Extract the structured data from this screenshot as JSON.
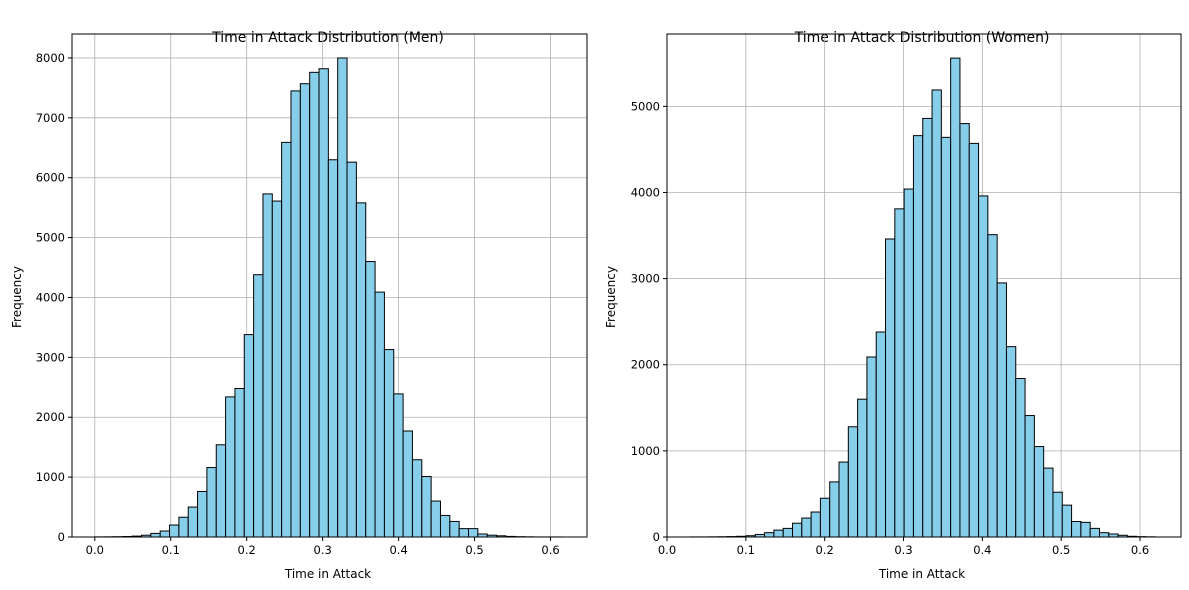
{
  "chart_data": [
    {
      "type": "bar",
      "title": "Time in Attack Distribution (Men)",
      "xlabel": "Time in Attack",
      "ylabel": "Frequency",
      "xlim": [
        -0.03,
        0.648
      ],
      "ylim": [
        0,
        8400
      ],
      "xticks": [
        0.0,
        0.1,
        0.2,
        0.3,
        0.4,
        0.5,
        0.6
      ],
      "xtick_labels": [
        "0.0",
        "0.1",
        "0.2",
        "0.3",
        "0.4",
        "0.5",
        "0.6"
      ],
      "yticks": [
        0,
        1000,
        2000,
        3000,
        4000,
        5000,
        6000,
        7000,
        8000
      ],
      "ytick_labels": [
        "0",
        "1000",
        "2000",
        "3000",
        "4000",
        "5000",
        "6000",
        "7000",
        "8000"
      ],
      "grid": true,
      "bin_start": 0.0,
      "bin_width": 0.0123,
      "bin_color": "#87ceeb",
      "edge_color": "#000000",
      "values": [
        2,
        3,
        5,
        8,
        15,
        30,
        60,
        100,
        200,
        330,
        500,
        760,
        1160,
        1540,
        2340,
        2480,
        3380,
        4380,
        5730,
        5610,
        6590,
        7450,
        7570,
        7760,
        7820,
        6300,
        8000,
        6260,
        5580,
        4600,
        4090,
        3130,
        2390,
        1770,
        1290,
        1010,
        600,
        360,
        260,
        140,
        140,
        50,
        30,
        20,
        10,
        5,
        3,
        1,
        1,
        1
      ]
    },
    {
      "type": "bar",
      "title": "Time in Attack Distribution (Women)",
      "xlabel": "Time in Attack",
      "ylabel": "Frequency",
      "xlim": [
        0.0,
        0.652
      ],
      "ylim": [
        0,
        5840
      ],
      "xticks": [
        0.0,
        0.1,
        0.2,
        0.3,
        0.4,
        0.5,
        0.6
      ],
      "xtick_labels": [
        "0.0",
        "0.1",
        "0.2",
        "0.3",
        "0.4",
        "0.5",
        "0.6"
      ],
      "yticks": [
        0,
        1000,
        2000,
        3000,
        4000,
        5000
      ],
      "ytick_labels": [
        "0",
        "1000",
        "2000",
        "3000",
        "4000",
        "5000"
      ],
      "grid": true,
      "bin_start": 0.0294,
      "bin_width": 0.0118,
      "bin_color": "#87ceeb",
      "edge_color": "#000000",
      "values": [
        1,
        1,
        2,
        3,
        5,
        8,
        15,
        30,
        50,
        80,
        100,
        160,
        220,
        290,
        450,
        640,
        870,
        1280,
        1600,
        2090,
        2380,
        3460,
        3810,
        4040,
        4660,
        4860,
        5190,
        4640,
        5560,
        4800,
        4570,
        3960,
        3510,
        2950,
        2210,
        1840,
        1410,
        1050,
        800,
        520,
        370,
        180,
        170,
        100,
        50,
        35,
        20,
        8,
        4,
        2
      ]
    }
  ]
}
